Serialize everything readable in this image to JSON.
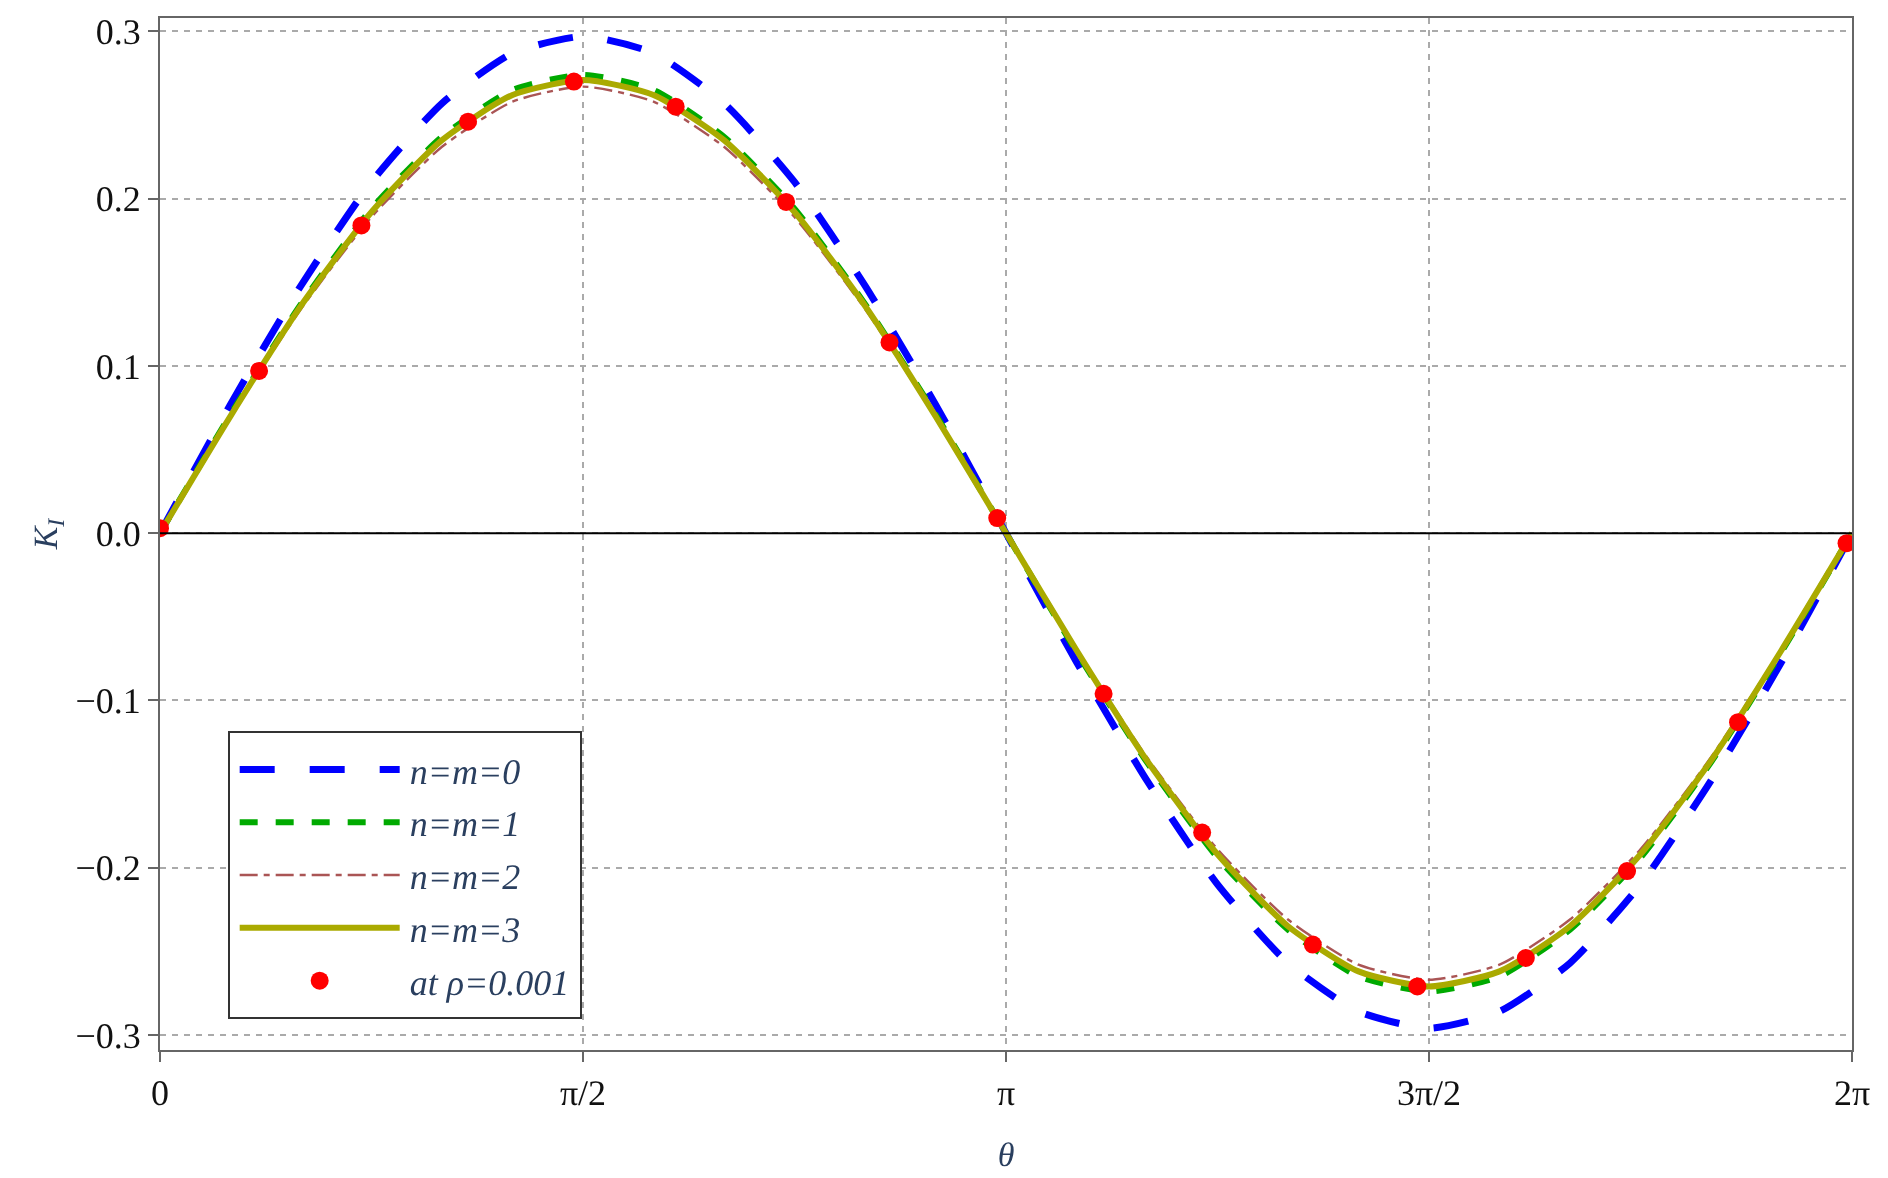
{
  "chart_data": {
    "type": "line",
    "xlabel": "θ",
    "ylabel": "K$_{I}$",
    "x": [
      0,
      0.2618,
      0.5236,
      0.7854,
      1.0472,
      1.309,
      1.5708,
      1.8326,
      2.0944,
      2.3562,
      2.618,
      2.8798,
      3.1416,
      3.4034,
      3.6652,
      3.927,
      4.1888,
      4.4506,
      4.7124,
      4.9742,
      5.236,
      5.4978,
      5.7596,
      6.0214,
      6.2832
    ],
    "series": [
      {
        "name": "n=m=0",
        "color": "#0000ff",
        "line_style": "dashed",
        "values": [
          0.0,
          0.077,
          0.148,
          0.21,
          0.257,
          0.287,
          0.297,
          0.287,
          0.257,
          0.21,
          0.148,
          0.077,
          0.0,
          -0.077,
          -0.148,
          -0.21,
          -0.257,
          -0.286,
          -0.296,
          -0.286,
          -0.257,
          -0.21,
          -0.148,
          -0.077,
          0.0
        ]
      },
      {
        "name": "n=m=1",
        "color": "#00aa00",
        "line_style": "dashed",
        "values": [
          0.0,
          0.071,
          0.137,
          0.194,
          0.237,
          0.265,
          0.274,
          0.265,
          0.237,
          0.194,
          0.137,
          0.071,
          0.0,
          -0.071,
          -0.137,
          -0.194,
          -0.237,
          -0.265,
          -0.274,
          -0.265,
          -0.237,
          -0.194,
          -0.137,
          -0.071,
          0.0
        ]
      },
      {
        "name": "n=m=2",
        "color": "#aa5555",
        "line_style": "dotted",
        "values": [
          0.0,
          0.069,
          0.134,
          0.189,
          0.231,
          0.258,
          0.267,
          0.258,
          0.231,
          0.189,
          0.134,
          0.069,
          0.0,
          -0.069,
          -0.134,
          -0.189,
          -0.231,
          -0.258,
          -0.267,
          -0.258,
          -0.231,
          -0.189,
          -0.134,
          -0.069,
          0.0
        ]
      },
      {
        "name": "n=m=3",
        "color": "#aaaa00",
        "line_style": "solid",
        "values": [
          0.0,
          0.07,
          0.136,
          0.192,
          0.235,
          0.262,
          0.271,
          0.262,
          0.235,
          0.192,
          0.136,
          0.07,
          0.0,
          -0.07,
          -0.136,
          -0.192,
          -0.235,
          -0.262,
          -0.271,
          -0.262,
          -0.235,
          -0.192,
          -0.136,
          -0.07,
          0.0
        ]
      },
      {
        "name": "at ρ=0.001",
        "type": "scatter",
        "marker": "circle",
        "color": "#ff0000",
        "x": [
          0,
          0.368,
          0.748,
          1.144,
          1.537,
          1.915,
          2.325,
          2.709,
          3.109,
          3.504,
          3.87,
          4.281,
          4.669,
          5.072,
          5.448,
          5.86,
          6.263
        ],
        "values": [
          0.003,
          0.097,
          0.184,
          0.246,
          0.27,
          0.255,
          0.198,
          0.114,
          0.009,
          -0.096,
          -0.179,
          -0.246,
          -0.271,
          -0.254,
          -0.202,
          -0.113,
          -0.006
        ]
      }
    ],
    "xlim": [
      0,
      6.2832
    ],
    "xticks": [
      0,
      {
        "value": 1.5708,
        "label": "π/2"
      },
      {
        "value": 3.1416,
        "label": "π"
      },
      {
        "value": 4.7124,
        "label": "3π/2"
      },
      {
        "value": 6.2832,
        "label": "2π"
      }
    ],
    "ylim": [
      -0.309,
      0.308
    ],
    "yticks": [
      {
        "value": -0.3,
        "label": "−0.3"
      },
      {
        "value": -0.2,
        "label": "−0.2"
      },
      {
        "value": -0.1,
        "label": "−0.1"
      },
      {
        "value": 0,
        "label": "0.0"
      },
      {
        "value": 0.1,
        "label": "0.1"
      },
      {
        "value": 0.2,
        "label": "0.2"
      },
      {
        "value": 0.3,
        "label": "0.3"
      }
    ],
    "ref_lines": [
      {
        "axis": "y",
        "value": 0,
        "color": "#000000"
      }
    ],
    "grid": true,
    "legend": "bottom left"
  }
}
